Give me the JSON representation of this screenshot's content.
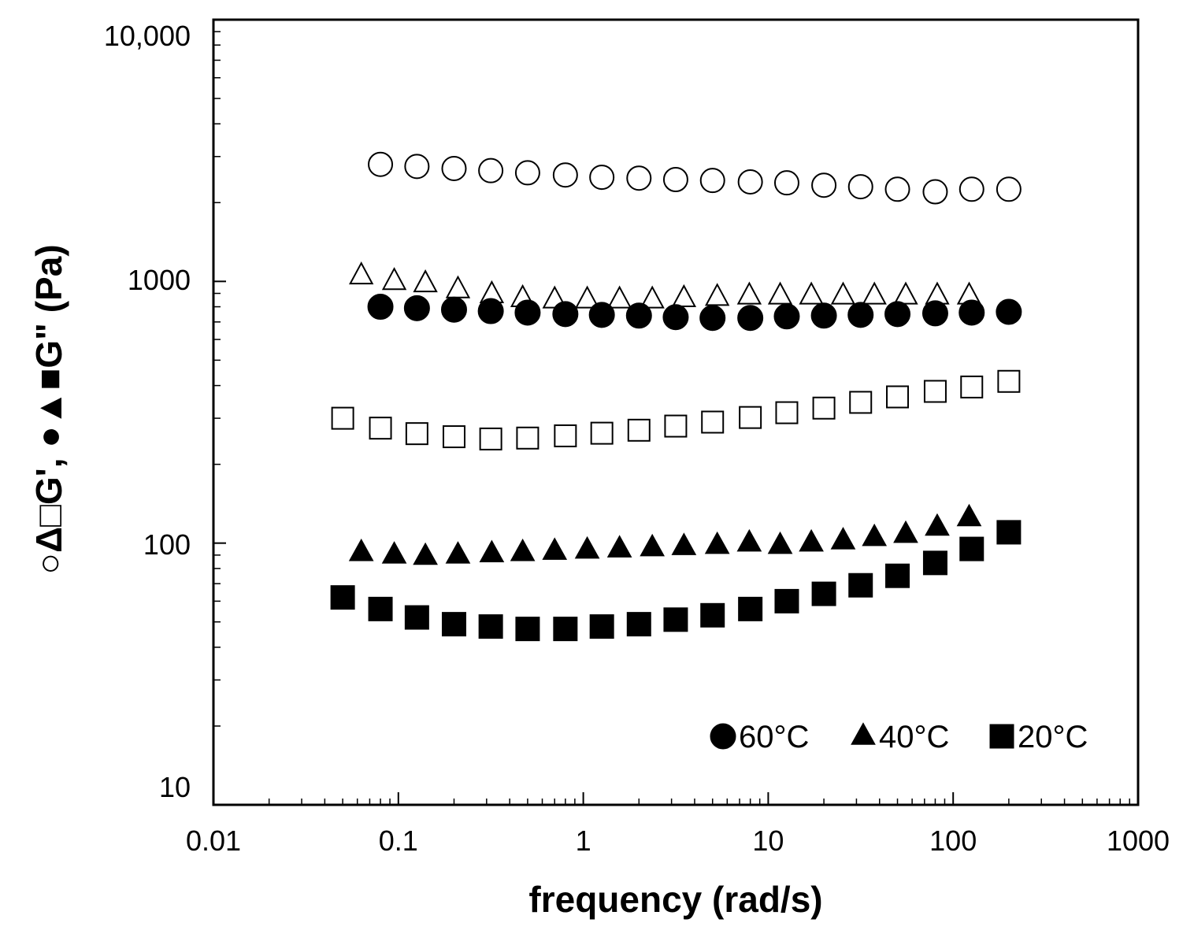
{
  "chart_data": {
    "type": "scatter",
    "xscale": "log",
    "yscale": "log",
    "xlim": [
      0.01,
      1000
    ],
    "ylim": [
      10,
      10000
    ],
    "xlabel": "frequency (rad/s)",
    "ylabel": "○Δ□G', ●▲■G\" (Pa)",
    "x_ticks": [
      {
        "value": 0.01,
        "label": "0.01"
      },
      {
        "value": 0.1,
        "label": "0.1"
      },
      {
        "value": 1,
        "label": "1"
      },
      {
        "value": 10,
        "label": "10"
      },
      {
        "value": 100,
        "label": "100"
      },
      {
        "value": 1000,
        "label": "1000"
      }
    ],
    "y_ticks": [
      {
        "value": 10,
        "label": "10"
      },
      {
        "value": 100,
        "label": "100"
      },
      {
        "value": 1000,
        "label": "1000"
      },
      {
        "value": 10000,
        "label": "10,000"
      }
    ],
    "legend": {
      "position": "bottom-right",
      "entries": [
        {
          "marker": "circle",
          "label": "60°C"
        },
        {
          "marker": "triangle",
          "label": "40°C"
        },
        {
          "marker": "square",
          "label": "20°C"
        }
      ]
    },
    "series": [
      {
        "name": "G' 60°C",
        "marker": "circle",
        "filled": false,
        "x": [
          0.08,
          0.126,
          0.2,
          0.316,
          0.5,
          0.8,
          1.26,
          2.0,
          3.16,
          5.0,
          8.0,
          12.6,
          20,
          31.6,
          50,
          80,
          126,
          200
        ],
        "y": [
          2800,
          2750,
          2700,
          2650,
          2600,
          2550,
          2500,
          2480,
          2450,
          2430,
          2400,
          2380,
          2330,
          2300,
          2250,
          2200,
          2250,
          2250
        ]
      },
      {
        "name": "G' 40°C",
        "marker": "triangle",
        "filled": false,
        "x": [
          0.063,
          0.095,
          0.14,
          0.21,
          0.32,
          0.47,
          0.7,
          1.05,
          1.57,
          2.36,
          3.5,
          5.3,
          7.9,
          11.6,
          17.1,
          25.4,
          37.5,
          55.4,
          82,
          122
        ],
        "y": [
          1050,
          1000,
          980,
          930,
          890,
          860,
          850,
          850,
          850,
          850,
          860,
          870,
          880,
          880,
          880,
          880,
          880,
          880,
          880,
          880
        ]
      },
      {
        "name": "G\" 60°C",
        "marker": "circle",
        "filled": true,
        "x": [
          0.08,
          0.126,
          0.2,
          0.316,
          0.5,
          0.8,
          1.26,
          2.0,
          3.16,
          5.0,
          8.0,
          12.6,
          20,
          31.6,
          50,
          80,
          126,
          200
        ],
        "y": [
          800,
          790,
          780,
          770,
          760,
          750,
          745,
          740,
          730,
          725,
          725,
          735,
          740,
          745,
          750,
          755,
          760,
          765
        ]
      },
      {
        "name": "G' 20°C",
        "marker": "square",
        "filled": false,
        "x": [
          0.05,
          0.08,
          0.126,
          0.2,
          0.316,
          0.5,
          0.8,
          1.26,
          2.0,
          3.16,
          5.0,
          8.0,
          12.6,
          20,
          31.6,
          50,
          80,
          126,
          200
        ],
        "y": [
          300,
          275,
          262,
          255,
          250,
          252,
          257,
          263,
          270,
          280,
          290,
          302,
          315,
          328,
          345,
          362,
          380,
          395,
          415
        ]
      },
      {
        "name": "G\" 40°C",
        "marker": "triangle",
        "filled": true,
        "x": [
          0.063,
          0.095,
          0.14,
          0.21,
          0.32,
          0.47,
          0.7,
          1.05,
          1.57,
          2.36,
          3.5,
          5.3,
          7.9,
          11.6,
          17.1,
          25.4,
          37.5,
          55.4,
          82,
          122
        ],
        "y": [
          92,
          90,
          89,
          90,
          91,
          92,
          93,
          94,
          95,
          96,
          97,
          98,
          100,
          98,
          100,
          102,
          105,
          108,
          115,
          125
        ]
      },
      {
        "name": "G\" 20°C",
        "marker": "square",
        "filled": true,
        "x": [
          0.05,
          0.08,
          0.126,
          0.2,
          0.316,
          0.5,
          0.8,
          1.26,
          2.0,
          3.16,
          5.0,
          8.0,
          12.6,
          20,
          31.6,
          50,
          80,
          126,
          200
        ],
        "y": [
          62,
          56,
          52,
          49,
          48,
          47,
          47,
          48,
          49,
          51,
          53,
          56,
          60,
          64,
          69,
          75,
          84,
          95,
          110
        ]
      }
    ]
  }
}
